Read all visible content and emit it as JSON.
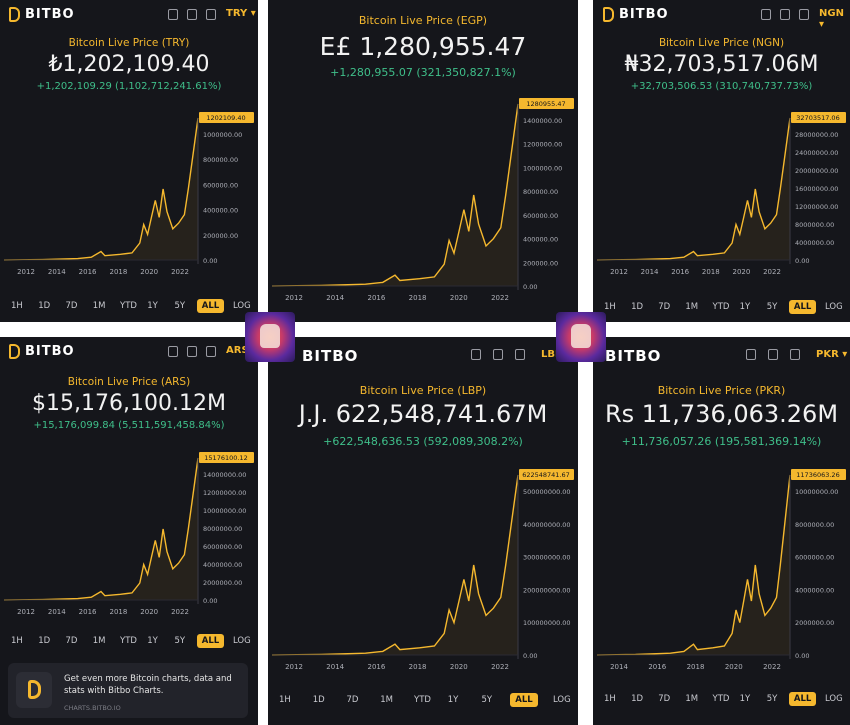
{
  "brand": "BITBO",
  "panels": [
    {
      "currency": "TRY",
      "title": "Bitcoin Live Price (TRY)",
      "price": "₺1,202,109.40",
      "change": "+1,202,109.29 (1,102,712,241.61%)",
      "last_label": "1202109.40",
      "y_ticks": [
        "1000000.00",
        "800000.00",
        "600000.00",
        "400000.00",
        "200000.00",
        "0.00"
      ],
      "x_ticks": [
        "2012",
        "2014",
        "2016",
        "2018",
        "2020",
        "2022"
      ],
      "timeframes": [
        "1H",
        "1D",
        "7D",
        "1M",
        "YTD",
        "1Y",
        "5Y",
        "ALL"
      ],
      "active_tf": "ALL",
      "log": "LOG"
    },
    {
      "currency": "EGP",
      "title": "Bitcoin Live Price (EGP)",
      "price": "E£ 1,280,955.47",
      "change": "+1,280,955.07 (321,350,827.1%)",
      "last_label": "1280955.47",
      "y_ticks": [
        "1400000.00",
        "1200000.00",
        "1000000.00",
        "800000.00",
        "600000.00",
        "400000.00",
        "200000.00",
        "0.00"
      ],
      "x_ticks": [
        "2012",
        "2014",
        "2016",
        "2018",
        "2020",
        "2022"
      ],
      "timeframes": [],
      "active_tf": "",
      "log": ""
    },
    {
      "currency": "NGN",
      "title": "Bitcoin Live Price (NGN)",
      "price": "₦32,703,517.06M",
      "change": "+32,703,506.53 (310,740,737.73%)",
      "last_label": "32703517.06",
      "y_ticks": [
        "28000000.00",
        "24000000.00",
        "20000000.00",
        "16000000.00",
        "12000000.00",
        "8000000.00",
        "4000000.00",
        "0.00"
      ],
      "x_ticks": [
        "2012",
        "2014",
        "2016",
        "2018",
        "2020",
        "2022"
      ],
      "timeframes": [
        "1H",
        "1D",
        "7D",
        "1M",
        "YTD",
        "1Y",
        "5Y",
        "ALL"
      ],
      "active_tf": "ALL",
      "log": "LOG"
    },
    {
      "currency": "ARS",
      "title": "Bitcoin Live Price (ARS)",
      "price": "$15,176,100.12M",
      "change": "+15,176,099.84 (5,511,591,458.84%)",
      "last_label": "15176100.12",
      "y_ticks": [
        "14000000.00",
        "12000000.00",
        "10000000.00",
        "8000000.00",
        "6000000.00",
        "4000000.00",
        "2000000.00",
        "0.00"
      ],
      "x_ticks": [
        "2012",
        "2014",
        "2016",
        "2018",
        "2020",
        "2022"
      ],
      "timeframes": [
        "1H",
        "1D",
        "7D",
        "1M",
        "YTD",
        "1Y",
        "5Y",
        "ALL"
      ],
      "active_tf": "ALL",
      "log": "LOG"
    },
    {
      "currency": "LBP",
      "title": "Bitcoin Live Price (LBP)",
      "price": "J.J. 622,548,741.67M",
      "change": "+622,548,636.53 (592,089,308.2%)",
      "last_label": "622548741.67",
      "y_ticks": [
        "500000000.00",
        "400000000.00",
        "300000000.00",
        "200000000.00",
        "100000000.00",
        "0.00"
      ],
      "x_ticks": [
        "2012",
        "2014",
        "2016",
        "2018",
        "2020",
        "2022"
      ],
      "timeframes": [
        "1H",
        "1D",
        "7D",
        "1M",
        "YTD",
        "1Y",
        "5Y",
        "ALL"
      ],
      "active_tf": "ALL",
      "log": "LOG"
    },
    {
      "currency": "PKR",
      "title": "Bitcoin Live Price (PKR)",
      "price": "Rs 11,736,063.26M",
      "change": "+11,736,057.26 (195,581,369.14%)",
      "last_label": "11736063.26",
      "y_ticks": [
        "10000000.00",
        "8000000.00",
        "6000000.00",
        "4000000.00",
        "2000000.00",
        "0.00"
      ],
      "x_ticks": [
        "2014",
        "2016",
        "2018",
        "2020",
        "2022"
      ],
      "timeframes": [
        "1H",
        "1D",
        "7D",
        "1M",
        "YTD",
        "1Y",
        "5Y",
        "ALL"
      ],
      "active_tf": "ALL",
      "log": "LOG"
    }
  ],
  "promo": {
    "text": "Get even more Bitcoin charts, data and stats with Bitbo Charts.",
    "url": "CHARTS.BITBO.IO"
  },
  "colors": {
    "accent": "#f5b82e",
    "panel": "#15161b",
    "up": "#3fbf8a"
  }
}
